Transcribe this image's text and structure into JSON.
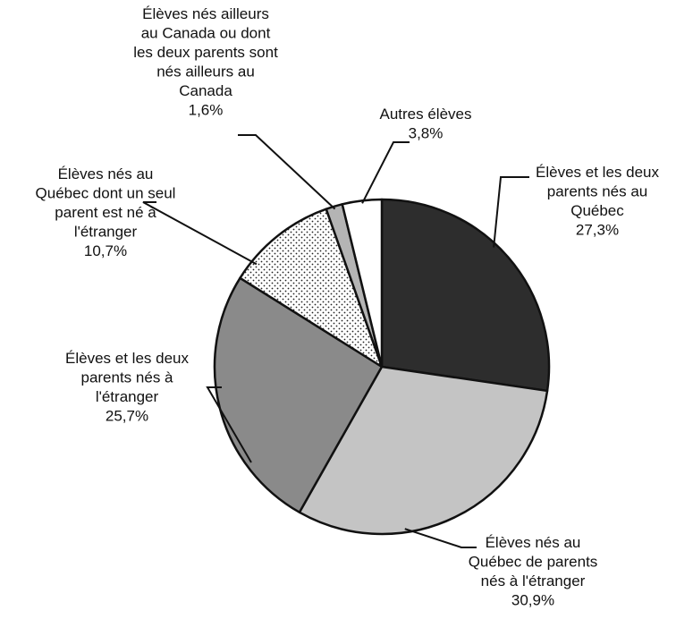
{
  "chart_data": {
    "type": "pie",
    "title": "",
    "start_angle_deg": 0,
    "direction": "clockwise",
    "slices": [
      {
        "label_lines": [
          "Élèves et les deux",
          "parents nés au",
          "Québec"
        ],
        "value": 27.3,
        "value_label": "27,3%",
        "color": "#2d2d2d",
        "pattern": "solid"
      },
      {
        "label_lines": [
          "Élèves nés au",
          "Québec de parents",
          "nés à l'étranger"
        ],
        "value": 30.9,
        "value_label": "30,9%",
        "color": "#c4c4c4",
        "pattern": "solid"
      },
      {
        "label_lines": [
          "Élèves et les deux",
          "parents nés à",
          "l'étranger"
        ],
        "value": 25.7,
        "value_label": "25,7%",
        "color": "#8a8a8a",
        "pattern": "solid"
      },
      {
        "label_lines": [
          "Élèves nés au",
          "Québec dont un seul",
          "parent est né à",
          "l'étranger"
        ],
        "value": 10.7,
        "value_label": "10,7%",
        "color": "#ffffff",
        "pattern": "dots"
      },
      {
        "label_lines": [
          "Élèves nés ailleurs",
          "au Canada ou dont",
          "les deux parents sont",
          "nés ailleurs au",
          "Canada"
        ],
        "value": 1.6,
        "value_label": "1,6%",
        "color": "#b4b4b4",
        "pattern": "solid"
      },
      {
        "label_lines": [
          "Autres élèves"
        ],
        "value": 3.8,
        "value_label": "3,8%",
        "color": "#ffffff",
        "pattern": "solid"
      }
    ]
  }
}
